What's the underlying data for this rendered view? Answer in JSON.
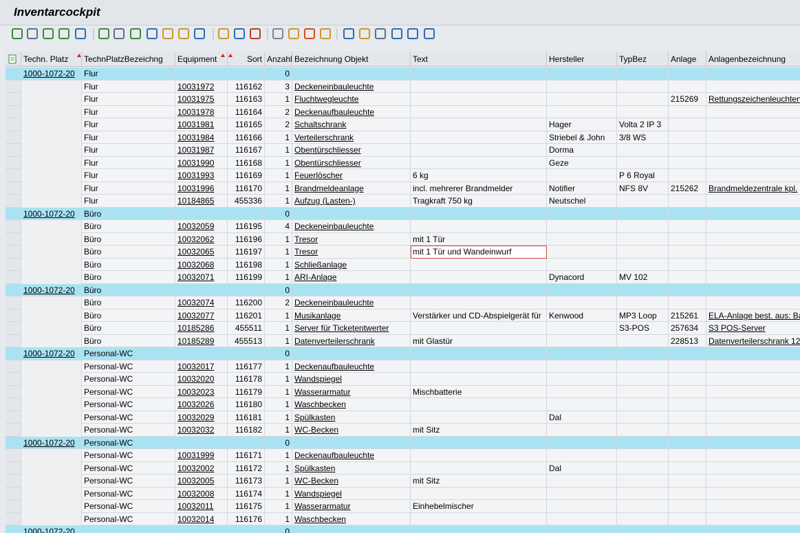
{
  "title": "Inventarcockpit",
  "table": {
    "columns": [
      "Techn. Platz",
      "TechnPlatzBezeichng",
      "Equipment",
      "Sort",
      "Anzahl",
      "Bezeichnung Objekt",
      "Text",
      "Hersteller",
      "TypBez",
      "Anlage",
      "Anlagenbezeichnung"
    ],
    "rows": [
      [
        "1000-1072-20",
        "Flur",
        null,
        null,
        "0",
        null,
        null,
        null,
        null,
        null,
        null
      ],
      [
        null,
        "Flur",
        "10031972",
        "116162",
        "3",
        "Deckeneinbauleuchte",
        null,
        null,
        null,
        null,
        null
      ],
      [
        null,
        "Flur",
        "10031975",
        "116163",
        "1",
        "Fluchtwegleuchte",
        null,
        null,
        null,
        "215269",
        "Rettungszeichenleuchten"
      ],
      [
        null,
        "Flur",
        "10031978",
        "116164",
        "2",
        "Deckenaufbauleuchte",
        null,
        null,
        null,
        null,
        null
      ],
      [
        null,
        "Flur",
        "10031981",
        "116165",
        "2",
        "Schaltschrank",
        null,
        "Hager",
        "Volta 2 IP 3",
        null,
        null
      ],
      [
        null,
        "Flur",
        "10031984",
        "116166",
        "1",
        "Verteilerschrank",
        null,
        "Striebel & John",
        "3/8 WS",
        null,
        null
      ],
      [
        null,
        "Flur",
        "10031987",
        "116167",
        "1",
        "Obentürschliesser",
        null,
        "Dorma",
        null,
        null,
        null
      ],
      [
        null,
        "Flur",
        "10031990",
        "116168",
        "1",
        "Obentürschliesser",
        null,
        "Geze",
        null,
        null,
        null
      ],
      [
        null,
        "Flur",
        "10031993",
        "116169",
        "1",
        "Feuerlöscher",
        "6 kg",
        null,
        "P 6 Royal",
        null,
        null
      ],
      [
        null,
        "Flur",
        "10031996",
        "116170",
        "1",
        "Brandmeldeanlage",
        "incl. mehrerer Brandmelder",
        "Notifier",
        "NFS 8V",
        "215262",
        "Brandmeldezentrale kpl."
      ],
      [
        null,
        "Flur",
        "10184865",
        "455336",
        "1",
        "Aufzug (Lasten-)",
        "Tragkraft 750 kg",
        "Neutschel",
        null,
        null,
        null
      ],
      [
        "1000-1072-20",
        "Büro",
        null,
        null,
        "0",
        null,
        null,
        null,
        null,
        null,
        null
      ],
      [
        null,
        "Büro",
        "10032059",
        "116195",
        "4",
        "Deckeneinbauleuchte",
        null,
        null,
        null,
        null,
        null
      ],
      [
        null,
        "Büro",
        "10032062",
        "116196",
        "1",
        "Tresor",
        "mit 1 Tür",
        null,
        null,
        null,
        null
      ],
      [
        null,
        "Büro",
        "10032065",
        "116197",
        "1",
        "Tresor",
        "mit 1 Tür und Wandeinwurf",
        null,
        null,
        null,
        null
      ],
      [
        null,
        "Büro",
        "10032068",
        "116198",
        "1",
        "Schließanlage",
        null,
        null,
        null,
        null,
        null
      ],
      [
        null,
        "Büro",
        "10032071",
        "116199",
        "1",
        "ARI-Anlage",
        null,
        "Dynacord",
        "MV 102",
        null,
        null
      ],
      [
        "1000-1072-20",
        "Büro",
        null,
        null,
        "0",
        null,
        null,
        null,
        null,
        null,
        null
      ],
      [
        null,
        "Büro",
        "10032074",
        "116200",
        "2",
        "Deckeneinbauleuchte",
        null,
        null,
        null,
        null,
        null
      ],
      [
        null,
        "Büro",
        "10032077",
        "116201",
        "1",
        "Musikanlage",
        "Verstärker und CD-Abspielgerät für",
        "Kenwood",
        "MP3 Loop",
        "215261",
        "ELA-Anlage best. aus: Ba"
      ],
      [
        null,
        "Büro",
        "10185286",
        "455511",
        "1",
        "Server für Ticketentwerter",
        null,
        null,
        "S3-POS",
        "257634",
        "S3 POS-Server"
      ],
      [
        null,
        "Büro",
        "10185289",
        "455513",
        "1",
        "Datenverteilerschrank",
        "mit Glastür",
        null,
        null,
        "228513",
        "Datenverteilerschrank 12"
      ],
      [
        "1000-1072-20",
        "Personal-WC",
        null,
        null,
        "0",
        null,
        null,
        null,
        null,
        null,
        null
      ],
      [
        null,
        "Personal-WC",
        "10032017",
        "116177",
        "1",
        "Deckenaufbauleuchte",
        null,
        null,
        null,
        null,
        null
      ],
      [
        null,
        "Personal-WC",
        "10032020",
        "116178",
        "1",
        "Wandspiegel",
        null,
        null,
        null,
        null,
        null
      ],
      [
        null,
        "Personal-WC",
        "10032023",
        "116179",
        "1",
        "Wasserarmatur",
        "Mischbatterie",
        null,
        null,
        null,
        null
      ],
      [
        null,
        "Personal-WC",
        "10032026",
        "116180",
        "1",
        "Waschbecken",
        null,
        null,
        null,
        null,
        null
      ],
      [
        null,
        "Personal-WC",
        "10032029",
        "116181",
        "1",
        "Spülkasten",
        null,
        "Dal",
        null,
        null,
        null
      ],
      [
        null,
        "Personal-WC",
        "10032032",
        "116182",
        "1",
        "WC-Becken",
        "mit Sitz",
        null,
        null,
        null,
        null
      ],
      [
        "1000-1072-20",
        "Personal-WC",
        null,
        null,
        "0",
        null,
        null,
        null,
        null,
        null,
        null
      ],
      [
        null,
        "Personal-WC",
        "10031999",
        "116171",
        "1",
        "Deckenaufbauleuchte",
        null,
        null,
        null,
        null,
        null
      ],
      [
        null,
        "Personal-WC",
        "10032002",
        "116172",
        "1",
        "Spülkasten",
        null,
        "Dal",
        null,
        null,
        null
      ],
      [
        null,
        "Personal-WC",
        "10032005",
        "116173",
        "1",
        "WC-Becken",
        "mit Sitz",
        null,
        null,
        null,
        null
      ],
      [
        null,
        "Personal-WC",
        "10032008",
        "116174",
        "1",
        "Wandspiegel",
        null,
        null,
        null,
        null,
        null
      ],
      [
        null,
        "Personal-WC",
        "10032011",
        "116175",
        "1",
        "Wasserarmatur",
        "Einhebelmischer",
        null,
        null,
        null,
        null
      ],
      [
        null,
        "Personal-WC",
        "10032014",
        "116176",
        "1",
        "Waschbecken",
        null,
        null,
        null,
        null,
        null
      ],
      [
        "1000-1072-20",
        null,
        null,
        null,
        "0",
        null,
        null,
        null,
        null,
        null,
        null
      ]
    ]
  }
}
